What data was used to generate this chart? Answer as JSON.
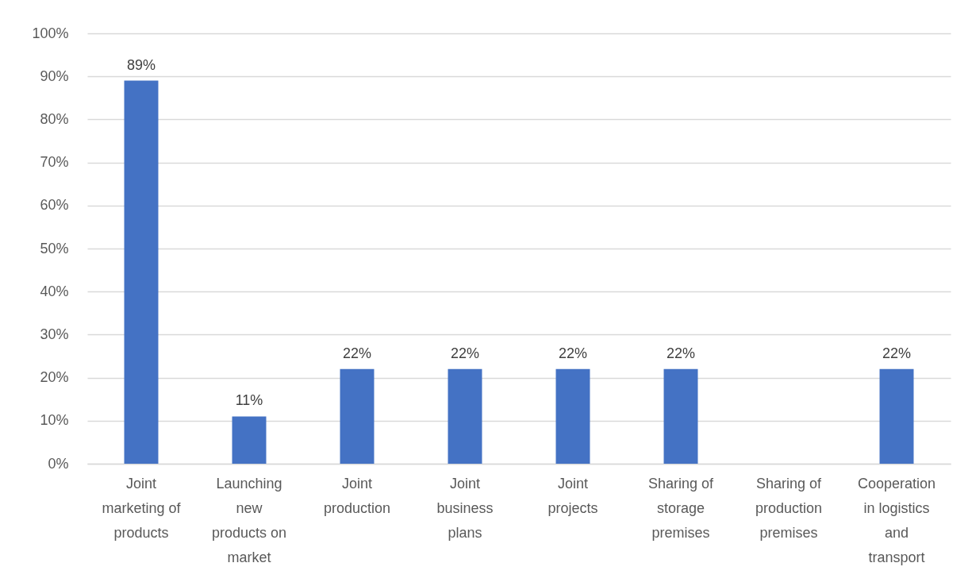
{
  "chart_data": {
    "type": "bar",
    "categories": [
      "Joint marketing of products",
      "Launching new products on market",
      "Joint production",
      "Joint business plans",
      "Joint projects",
      "Sharing of storage premises",
      "Sharing of production premises",
      "Cooperation in logistics and transport"
    ],
    "values": [
      89,
      11,
      22,
      22,
      22,
      22,
      null,
      22
    ],
    "value_labels": [
      "89%",
      "11%",
      "22%",
      "22%",
      "22%",
      "22%",
      null,
      "22%"
    ],
    "color": "#4472c4",
    "ylim": [
      0,
      100
    ],
    "yticks": [
      {
        "value": 0,
        "label": "0%"
      },
      {
        "value": 10,
        "label": "10%"
      },
      {
        "value": 20,
        "label": "20%"
      },
      {
        "value": 30,
        "label": "30%"
      },
      {
        "value": 40,
        "label": "40%"
      },
      {
        "value": 50,
        "label": "50%"
      },
      {
        "value": 60,
        "label": "60%"
      },
      {
        "value": 70,
        "label": "70%"
      },
      {
        "value": 80,
        "label": "80%"
      },
      {
        "value": 90,
        "label": "90%"
      },
      {
        "value": 100,
        "label": "100%"
      }
    ],
    "grid": "y"
  }
}
